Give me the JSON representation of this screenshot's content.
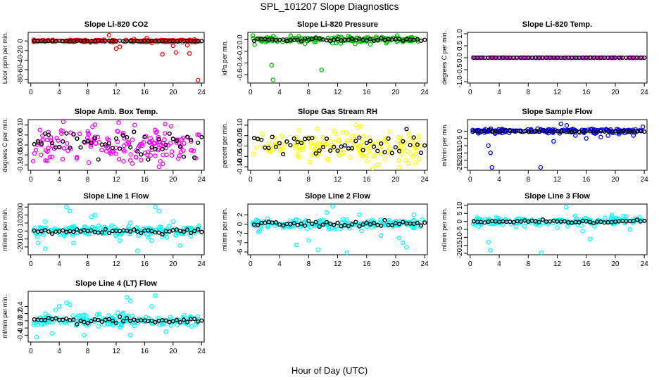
{
  "figure_title": "SPL_101207  Slope Diagnostics",
  "x_label": "Hour of Day (UTC)",
  "chart_data": [
    {
      "type": "scatter",
      "title": "Slope Li-820 CO2",
      "ylabel": "Licor ppm per min.",
      "color": "#ff0000",
      "xlim": [
        0,
        24
      ],
      "ylim": [
        -85,
        15
      ],
      "xticks": [
        0,
        4,
        8,
        12,
        16,
        20,
        24
      ],
      "yticks": [
        0,
        -20,
        -40,
        -60,
        -80
      ],
      "ytick_labels": [
        "0",
        "-20",
        "-40",
        "-60",
        "-80"
      ],
      "noise_sd": 1.2,
      "outliers": [
        [
          11,
          12
        ],
        [
          12,
          -16
        ],
        [
          12.5,
          -12
        ],
        [
          14.5,
          4
        ],
        [
          16.3,
          6
        ],
        [
          17,
          -4
        ],
        [
          18.5,
          -28
        ],
        [
          20,
          -10
        ],
        [
          20.4,
          -24
        ],
        [
          22,
          -9
        ],
        [
          22.3,
          -26
        ],
        [
          23.5,
          -82
        ],
        [
          23,
          3
        ]
      ],
      "black_sd": 0.5
    },
    {
      "type": "scatter",
      "title": "Slope Li-820 Pressure",
      "ylabel": "kPa per min.",
      "color": "#00bb00",
      "xlim": [
        0,
        24
      ],
      "ylim": [
        -0.72,
        0.1
      ],
      "xticks": [
        0,
        4,
        8,
        12,
        16,
        20,
        24
      ],
      "yticks": [
        0,
        -0.2,
        -0.4,
        -0.6
      ],
      "ytick_labels": [
        "0.0",
        "-0.2",
        "-0.4",
        "-0.6"
      ],
      "noise_sd": 0.025,
      "outliers": [
        [
          2.9,
          -0.44
        ],
        [
          3.1,
          -0.69
        ],
        [
          9.8,
          -0.52
        ],
        [
          11.3,
          -0.06
        ],
        [
          12,
          0.05
        ],
        [
          13.5,
          0.06
        ],
        [
          7.5,
          -0.07
        ],
        [
          16.5,
          -0.08
        ]
      ],
      "black_sd": 0.012
    },
    {
      "type": "scatter",
      "title": "Slope Li-820 Temp.",
      "ylabel": "degrees C per min.",
      "color": "#ff00ff",
      "xlim": [
        0,
        24
      ],
      "ylim": [
        -1.0,
        1.0
      ],
      "xticks": [
        0,
        4,
        8,
        12,
        16,
        20,
        24
      ],
      "yticks": [
        1.0,
        0.5,
        0,
        -0.5,
        -1.0
      ],
      "ytick_labels": [
        "1.0",
        "0.5",
        "0.0",
        "-0.5",
        "-1.0"
      ],
      "noise_sd": 0.002,
      "outliers": [],
      "black_sd": 0.001
    },
    {
      "type": "scatter",
      "title": "Slope Amb. Box Temp.",
      "ylabel": "degrees C per min.",
      "color": "#ff00ff",
      "xlim": [
        0,
        24
      ],
      "ylim": [
        -0.12,
        0.12
      ],
      "xticks": [
        0,
        4,
        8,
        12,
        16,
        20,
        24
      ],
      "yticks": [
        0.1,
        0.05,
        0,
        -0.05,
        -0.1
      ],
      "ytick_labels": [
        "0.10",
        "0.05",
        "0.00",
        "-0.05",
        "-0.10"
      ],
      "noise_sd": 0.045,
      "outliers": [],
      "black_sd": 0.035
    },
    {
      "type": "scatter",
      "title": "Slope Gas Stream RH",
      "ylabel": "percent per min.",
      "color": "#ffff00",
      "xlim": [
        0,
        24
      ],
      "ylim": [
        -0.11,
        0.12
      ],
      "xticks": [
        0,
        4,
        8,
        12,
        16,
        20,
        24
      ],
      "yticks": [
        0.1,
        0.05,
        0,
        -0.05,
        -0.1
      ],
      "ytick_labels": [
        "0.10",
        "0.05",
        "0.00",
        "-0.05",
        "-0.10"
      ],
      "noise_sd": 0.04,
      "outliers": [],
      "black_sd": 0.035
    },
    {
      "type": "scatter",
      "title": "Slope Sample Flow",
      "ylabel": "ml/min per min.",
      "color": "#0000ff",
      "xlim": [
        0,
        24
      ],
      "ylim": [
        -26,
        7
      ],
      "xticks": [
        0,
        4,
        8,
        12,
        16,
        20,
        24
      ],
      "yticks": [
        0,
        -5,
        -10,
        -15,
        -20,
        -25
      ],
      "ytick_labels": [
        "0",
        "-5",
        "-10",
        "-15",
        "-20",
        "-25"
      ],
      "noise_sd": 0.8,
      "outliers": [
        [
          2.5,
          -10
        ],
        [
          2.8,
          -15
        ],
        [
          3,
          -25
        ],
        [
          9.7,
          -25
        ],
        [
          12.5,
          5
        ],
        [
          13.3,
          4
        ],
        [
          11.5,
          -7
        ],
        [
          14.5,
          -3
        ],
        [
          16,
          -5
        ],
        [
          18,
          -4
        ],
        [
          19,
          -3
        ],
        [
          20.5,
          -2
        ],
        [
          22.5,
          -3
        ],
        [
          23.8,
          3
        ]
      ],
      "black_sd": 0.3
    },
    {
      "type": "scatter",
      "title": "Slope Line 1 Flow",
      "ylabel": "ml/min per min.",
      "color": "#00ffff",
      "xlim": [
        0,
        24
      ],
      "ylim": [
        -28,
        32
      ],
      "xticks": [
        0,
        4,
        8,
        12,
        16,
        20,
        24
      ],
      "yticks": [
        30,
        20,
        10,
        0,
        -10,
        -20
      ],
      "ytick_labels": [
        "30",
        "20",
        "10",
        "0",
        "-10",
        "-20"
      ],
      "noise_sd": 3,
      "outliers": [
        [
          5,
          30
        ],
        [
          5.5,
          25
        ],
        [
          2,
          12
        ],
        [
          1,
          -15
        ],
        [
          2,
          -22
        ],
        [
          6,
          -15
        ],
        [
          8.5,
          18
        ],
        [
          9,
          20
        ],
        [
          15,
          -25
        ],
        [
          17.5,
          30
        ],
        [
          18,
          25
        ],
        [
          17,
          -12
        ],
        [
          21,
          -18
        ],
        [
          20,
          12
        ],
        [
          12.5,
          -12
        ],
        [
          14,
          10
        ]
      ],
      "black_sd": 1.5
    },
    {
      "type": "scatter",
      "title": "Slope Line 2 Flow",
      "ylabel": "ml/min per min.",
      "color": "#00ffff",
      "xlim": [
        0,
        24
      ],
      "ylim": [
        -6.3,
        4
      ],
      "xticks": [
        0,
        4,
        8,
        12,
        16,
        20,
        24
      ],
      "yticks": [
        2,
        0,
        -2,
        -4,
        -6
      ],
      "ytick_labels": [
        "2",
        "0",
        "-2",
        "-4",
        "-6"
      ],
      "noise_sd": 0.5,
      "outliers": [
        [
          11.3,
          3.8
        ],
        [
          13.3,
          -6.2
        ],
        [
          9.3,
          -5.5
        ],
        [
          6.3,
          -4.5
        ],
        [
          21,
          -4
        ],
        [
          21.5,
          -5
        ],
        [
          20.5,
          -3
        ],
        [
          10.5,
          2.5
        ],
        [
          15,
          2
        ],
        [
          8,
          -3.5
        ],
        [
          22.5,
          2
        ],
        [
          18,
          -2.5
        ]
      ],
      "black_sd": 0.3
    },
    {
      "type": "scatter",
      "title": "Slope Line 3 Flow",
      "ylabel": "ml/min per min.",
      "color": "#00ffff",
      "xlim": [
        0,
        24
      ],
      "ylim": [
        -20,
        10
      ],
      "xticks": [
        0,
        4,
        8,
        12,
        16,
        20,
        24
      ],
      "yticks": [
        10,
        5,
        0,
        -5,
        -10,
        -15,
        -20
      ],
      "ytick_labels": [
        "10",
        "5",
        "0",
        "-5",
        "-10",
        "-15",
        "-20"
      ],
      "noise_sd": 1.3,
      "outliers": [
        [
          2.5,
          -13
        ],
        [
          2.8,
          -18
        ],
        [
          9.8,
          -20
        ],
        [
          13.2,
          9
        ],
        [
          7.5,
          -3
        ],
        [
          16.5,
          -11
        ],
        [
          12,
          -4
        ],
        [
          22,
          -5
        ],
        [
          19.5,
          4
        ],
        [
          15.5,
          -6
        ]
      ],
      "black_sd": 0.5
    },
    {
      "type": "scatter",
      "title": "Slope Line 4 (LT) Flow",
      "ylabel": "ml/min per min.",
      "color": "#00ffff",
      "xlim": [
        0,
        24
      ],
      "ylim": [
        -0.55,
        0.78
      ],
      "xticks": [
        0,
        4,
        8,
        12,
        16,
        20,
        24
      ],
      "yticks": [
        0.4,
        0.2,
        0,
        -0.2,
        -0.4
      ],
      "ytick_labels": [
        "0.4",
        "0.2",
        "0.0",
        "-0.2",
        "-0.4"
      ],
      "noise_sd": 0.09,
      "outliers": [
        [
          0.8,
          -0.45
        ],
        [
          2,
          0.2
        ],
        [
          3.5,
          0.3
        ],
        [
          4,
          0.4
        ],
        [
          5,
          0.5
        ],
        [
          5.5,
          0.45
        ],
        [
          13.5,
          0.65
        ],
        [
          14,
          0.55
        ],
        [
          17.5,
          0.7
        ],
        [
          17,
          0.4
        ],
        [
          14,
          -0.4
        ],
        [
          19,
          -0.3
        ],
        [
          7.5,
          -0.4
        ],
        [
          3,
          -0.35
        ]
      ],
      "black_sd": 0.04
    }
  ]
}
